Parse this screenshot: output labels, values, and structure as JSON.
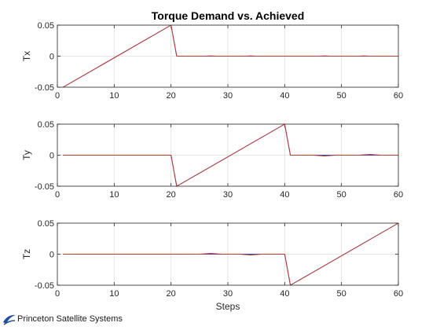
{
  "title": "Torque Demand vs. Achieved",
  "xlabel": "Steps",
  "logo_text": "Princeton Satellite Systems",
  "colors": {
    "demand": "#2a3fd4",
    "achieved": "#c0392b",
    "axis": "#262626",
    "grid": "#e6e6e6"
  },
  "chart_data": [
    {
      "type": "line",
      "ylabel": "Tx",
      "xlim": [
        0,
        60
      ],
      "ylim": [
        -0.05,
        0.05
      ],
      "xticks": [
        "0",
        "10",
        "20",
        "30",
        "40",
        "50",
        "60"
      ],
      "yticks": [
        "0.05",
        "0",
        "-0.05"
      ],
      "grid": true,
      "series": [
        {
          "x": [
            1,
            20,
            21,
            60
          ],
          "y": [
            -0.05,
            0.05,
            0,
            0
          ]
        },
        {
          "x": [
            1,
            20,
            21,
            26,
            27,
            28,
            33,
            34,
            35,
            46,
            47,
            48,
            53,
            54,
            55,
            60
          ],
          "y": [
            -0.05,
            0.05,
            0,
            0,
            0.0005,
            0,
            0,
            0.0005,
            0,
            0,
            0.0005,
            0,
            0,
            0.0005,
            0,
            0
          ]
        }
      ]
    },
    {
      "type": "line",
      "ylabel": "Ty",
      "xlim": [
        0,
        60
      ],
      "ylim": [
        -0.05,
        0.05
      ],
      "xticks": [
        "0",
        "10",
        "20",
        "30",
        "40",
        "50",
        "60"
      ],
      "yticks": [
        "0.05",
        "0",
        "-0.05"
      ],
      "grid": true,
      "series": [
        {
          "x": [
            1,
            20,
            21,
            40,
            41,
            60
          ],
          "y": [
            0,
            0,
            -0.05,
            0.05,
            0,
            0
          ]
        },
        {
          "x": [
            1,
            20,
            21,
            40,
            41,
            45,
            47,
            49,
            53,
            55,
            57,
            60
          ],
          "y": [
            0,
            0,
            -0.05,
            0.05,
            0,
            0,
            -0.0012,
            0,
            0,
            0.0012,
            0,
            0
          ]
        }
      ]
    },
    {
      "type": "line",
      "ylabel": "Tz",
      "xlim": [
        0,
        60
      ],
      "ylim": [
        -0.05,
        0.05
      ],
      "xticks": [
        "0",
        "10",
        "20",
        "30",
        "40",
        "50",
        "60"
      ],
      "yticks": [
        "0.05",
        "0",
        "-0.05"
      ],
      "grid": true,
      "series": [
        {
          "x": [
            1,
            40,
            41,
            60
          ],
          "y": [
            0,
            0,
            -0.05,
            0.05
          ]
        },
        {
          "x": [
            1,
            25,
            27,
            29,
            32,
            34,
            36,
            40,
            41,
            60
          ],
          "y": [
            0,
            0,
            0.0012,
            0,
            0,
            -0.0012,
            0,
            0,
            -0.05,
            0.05
          ]
        }
      ]
    }
  ]
}
